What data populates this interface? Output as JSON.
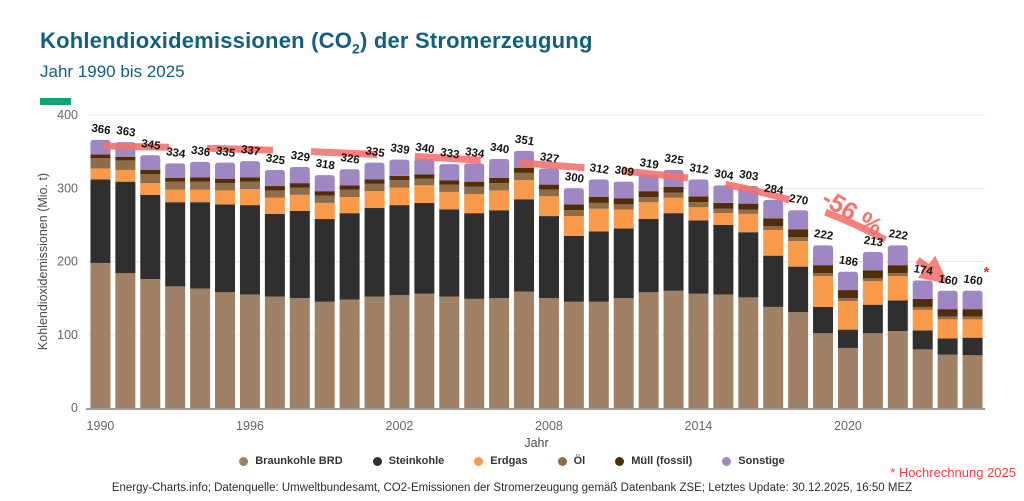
{
  "header": {
    "title_pre": "Kohlendioxidemissionen (CO",
    "title_sub": "2",
    "title_post": ") der Stromerzeugung",
    "subtitle": "Jahr 1990 bis 2025"
  },
  "accent_color": "#16a07a",
  "chart_data": {
    "type": "bar",
    "stacked": true,
    "title": "Kohlendioxidemissionen (CO2) der Stromerzeugung",
    "subtitle": "Jahr 1990 bis 2025",
    "xlabel": "Jahr",
    "ylabel": "Kohlendioxidemissionen (Mio. t)",
    "ylim": [
      0,
      400
    ],
    "yticks": [
      0,
      100,
      200,
      300,
      400
    ],
    "xtick_labels": [
      "1990",
      "1996",
      "2002",
      "2008",
      "2014",
      "2020"
    ],
    "xtick_indices": [
      0,
      6,
      12,
      18,
      24,
      30
    ],
    "grid": true,
    "legend_position": "bottom",
    "categories": [
      "1990",
      "1991",
      "1992",
      "1993",
      "1994",
      "1995",
      "1996",
      "1997",
      "1998",
      "1999",
      "2000",
      "2001",
      "2002",
      "2003",
      "2004",
      "2005",
      "2006",
      "2007",
      "2008",
      "2009",
      "2010",
      "2011",
      "2012",
      "2013",
      "2014",
      "2015",
      "2016",
      "2017",
      "2018",
      "2019",
      "2020",
      "2021",
      "2022",
      "2023",
      "2024",
      "2025"
    ],
    "totals": [
      366,
      363,
      345,
      334,
      336,
      335,
      337,
      325,
      329,
      318,
      326,
      335,
      339,
      340,
      333,
      334,
      340,
      351,
      327,
      300,
      312,
      309,
      319,
      325,
      312,
      304,
      303,
      284,
      270,
      222,
      186,
      213,
      222,
      174,
      160,
      160
    ],
    "series": [
      {
        "name": "Braunkohle BRD",
        "color": "#a08165",
        "values": [
          198,
          184,
          176,
          166,
          163,
          158,
          155,
          152,
          150,
          145,
          148,
          152,
          154,
          156,
          152,
          149,
          150,
          159,
          150,
          145,
          145,
          150,
          158,
          160,
          156,
          155,
          151,
          138,
          131,
          102,
          82,
          102,
          105,
          80,
          73,
          72
        ]
      },
      {
        "name": "Steinkohle",
        "color": "#2f2f2f",
        "values": [
          114,
          125,
          115,
          115,
          118,
          120,
          122,
          113,
          119,
          113,
          118,
          121,
          123,
          124,
          119,
          117,
          120,
          126,
          112,
          90,
          96,
          95,
          100,
          106,
          100,
          95,
          89,
          70,
          62,
          36,
          25,
          39,
          42,
          26,
          22,
          24
        ]
      },
      {
        "name": "Erdgas",
        "color": "#f9994a",
        "values": [
          15,
          16,
          16,
          17,
          17,
          19,
          22,
          22,
          22,
          22,
          22,
          23,
          24,
          24,
          24,
          26,
          27,
          26,
          27,
          27,
          31,
          26,
          23,
          21,
          18,
          16,
          25,
          35,
          35,
          42,
          39,
          32,
          33,
          28,
          26,
          25
        ]
      },
      {
        "name": "Öl",
        "color": "#8e6b49",
        "values": [
          14,
          13,
          12,
          11,
          11,
          10,
          10,
          10,
          10,
          10,
          10,
          10,
          10,
          9,
          10,
          10,
          10,
          10,
          9,
          8,
          8,
          7,
          7,
          7,
          7,
          6,
          6,
          5,
          5,
          4,
          4,
          4,
          4,
          4,
          4,
          4
        ]
      },
      {
        "name": "Müll (fossil)",
        "color": "#512d08",
        "values": [
          5,
          5,
          6,
          5,
          6,
          6,
          6,
          6,
          6,
          6,
          6,
          6,
          6,
          6,
          6,
          7,
          7,
          7,
          7,
          8,
          8,
          8,
          8,
          8,
          8,
          8,
          8,
          11,
          11,
          11,
          11,
          11,
          11,
          11,
          10,
          10
        ]
      },
      {
        "name": "Sonstige",
        "color": "#9e87c2",
        "values": [
          20,
          20,
          20,
          20,
          21,
          22,
          22,
          22,
          22,
          22,
          22,
          23,
          22,
          21,
          22,
          25,
          26,
          23,
          22,
          22,
          24,
          23,
          23,
          23,
          23,
          24,
          24,
          25,
          26,
          27,
          25,
          25,
          27,
          25,
          25,
          25
        ]
      }
    ],
    "trend": {
      "label": "-56 %",
      "color": "#f4736f"
    },
    "projection_year": "2025",
    "projection_marker": "*",
    "projection_marker_color": "#e8322d"
  },
  "annotations": {
    "hochrechnung": "* Hochrechnung 2025"
  },
  "footer": {
    "text": "Energy-Charts.info; Datenquelle: Umweltbundesamt, CO2-Emissionen der Stromerzeugung gemäß Datenbank ZSE; Letztes Update: 30.12.2025, 16:50 MEZ"
  }
}
